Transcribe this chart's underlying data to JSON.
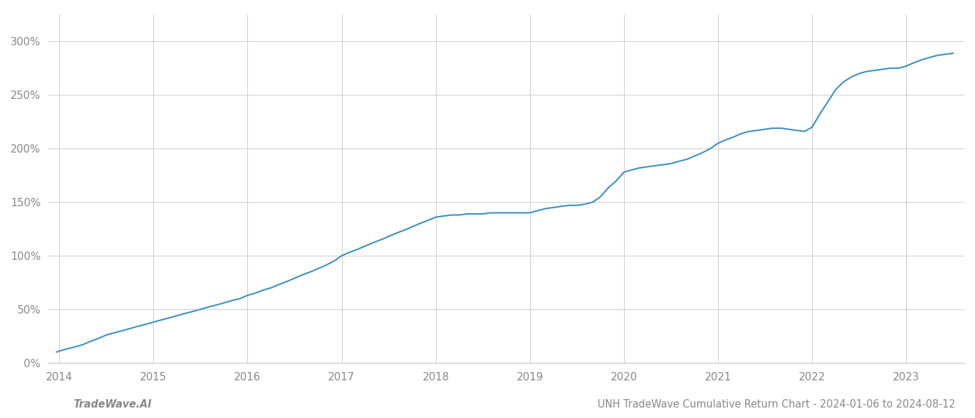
{
  "title": "UNH TradeWave Cumulative Return Chart - 2024-01-06 to 2024-08-12",
  "footer_left": "TradeWave.AI",
  "line_color": "#3a8fc4",
  "background_color": "#ffffff",
  "grid_color": "#cccccc",
  "text_color": "#888888",
  "years": [
    2014,
    2015,
    2016,
    2017,
    2018,
    2019,
    2020,
    2021,
    2022,
    2023
  ],
  "x_data": [
    2013.97,
    2014.0,
    2014.08,
    2014.17,
    2014.25,
    2014.33,
    2014.42,
    2014.5,
    2014.58,
    2014.67,
    2014.75,
    2014.83,
    2014.92,
    2015.0,
    2015.08,
    2015.17,
    2015.25,
    2015.33,
    2015.42,
    2015.5,
    2015.58,
    2015.67,
    2015.75,
    2015.83,
    2015.92,
    2016.0,
    2016.08,
    2016.17,
    2016.25,
    2016.33,
    2016.42,
    2016.5,
    2016.58,
    2016.67,
    2016.75,
    2016.83,
    2016.92,
    2017.0,
    2017.08,
    2017.17,
    2017.25,
    2017.33,
    2017.42,
    2017.5,
    2017.58,
    2017.67,
    2017.75,
    2017.83,
    2017.92,
    2018.0,
    2018.08,
    2018.17,
    2018.25,
    2018.33,
    2018.42,
    2018.5,
    2018.58,
    2018.67,
    2018.75,
    2018.83,
    2018.92,
    2019.0,
    2019.08,
    2019.17,
    2019.25,
    2019.33,
    2019.42,
    2019.5,
    2019.58,
    2019.67,
    2019.75,
    2019.83,
    2019.92,
    2020.0,
    2020.08,
    2020.17,
    2020.25,
    2020.33,
    2020.42,
    2020.5,
    2020.58,
    2020.67,
    2020.75,
    2020.83,
    2020.92,
    2021.0,
    2021.08,
    2021.17,
    2021.25,
    2021.33,
    2021.42,
    2021.5,
    2021.58,
    2021.67,
    2021.75,
    2021.83,
    2021.92,
    2022.0,
    2022.08,
    2022.17,
    2022.25,
    2022.33,
    2022.42,
    2022.5,
    2022.58,
    2022.67,
    2022.75,
    2022.83,
    2022.92,
    2023.0,
    2023.08,
    2023.17,
    2023.25,
    2023.33,
    2023.42,
    2023.5
  ],
  "y_data": [
    10,
    11,
    13,
    15,
    17,
    20,
    23,
    26,
    28,
    30,
    32,
    34,
    36,
    38,
    40,
    42,
    44,
    46,
    48,
    50,
    52,
    54,
    56,
    58,
    60,
    63,
    65,
    68,
    70,
    73,
    76,
    79,
    82,
    85,
    88,
    91,
    95,
    100,
    103,
    106,
    109,
    112,
    115,
    118,
    121,
    124,
    127,
    130,
    133,
    136,
    137,
    138,
    138,
    139,
    139,
    139,
    140,
    140,
    140,
    140,
    140,
    140,
    142,
    144,
    145,
    146,
    147,
    147,
    148,
    150,
    155,
    163,
    170,
    178,
    180,
    182,
    183,
    184,
    185,
    186,
    188,
    190,
    193,
    196,
    200,
    205,
    208,
    211,
    214,
    216,
    217,
    218,
    219,
    219,
    218,
    217,
    216,
    220,
    232,
    244,
    255,
    262,
    267,
    270,
    272,
    273,
    274,
    275,
    275,
    277,
    280,
    283,
    285,
    287,
    288,
    289
  ],
  "ylim": [
    0,
    325
  ],
  "yticks": [
    0,
    50,
    100,
    150,
    200,
    250,
    300
  ],
  "xlim_start": 2013.88,
  "xlim_end": 2023.62,
  "figsize": [
    14.0,
    6.0
  ],
  "dpi": 100,
  "line_width": 1.5,
  "title_fontsize": 10.5,
  "footer_fontsize": 10.5,
  "tick_fontsize": 11,
  "spine_color": "#cccccc"
}
